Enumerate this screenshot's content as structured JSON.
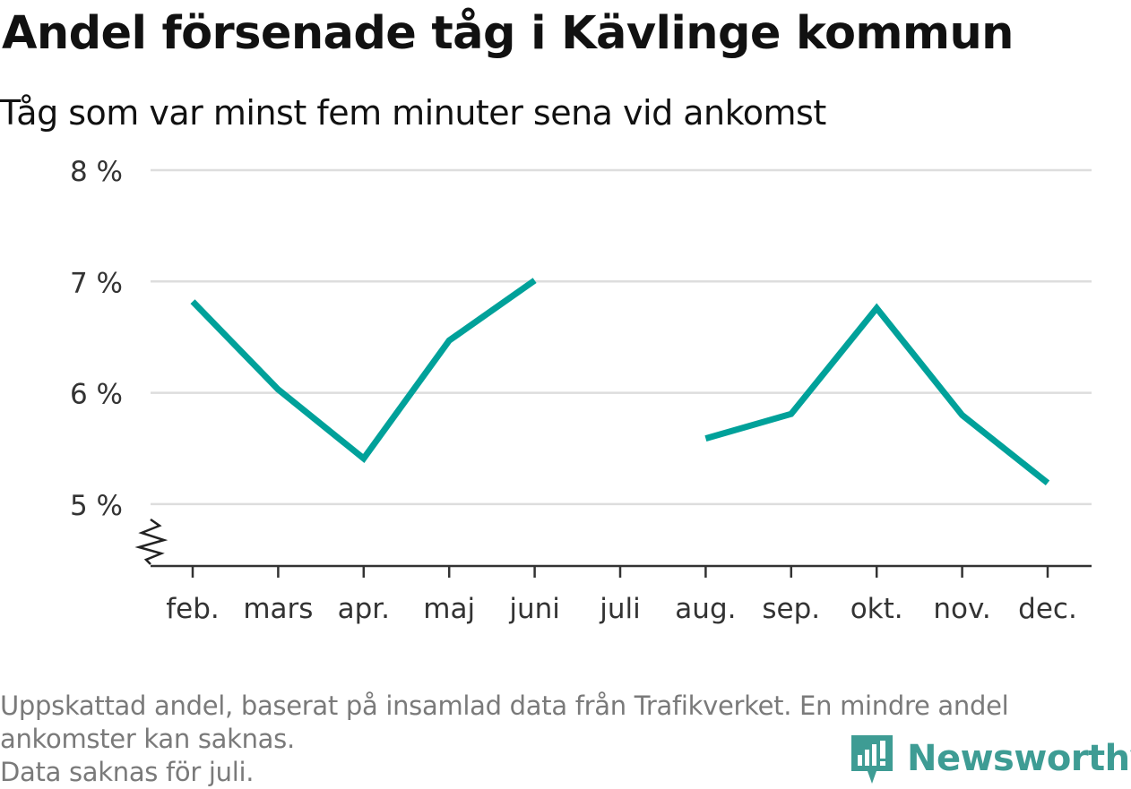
{
  "title": "Andel försenade tåg i Kävlinge kommun",
  "subtitle": "Tåg som var minst fem minuter sena vid ankomst",
  "chart_data": {
    "type": "line",
    "title": "Andel försenade tåg i Kävlinge kommun",
    "subtitle": "Tåg som var minst fem minuter sena vid ankomst",
    "categories": [
      "feb.",
      "mars",
      "apr.",
      "maj",
      "juni",
      "juli",
      "aug.",
      "sep.",
      "okt.",
      "nov.",
      "dec."
    ],
    "series": [
      {
        "values": [
          6.82,
          6.03,
          5.41,
          6.47,
          7.01,
          null,
          5.59,
          5.81,
          6.76,
          5.8,
          5.19
        ]
      }
    ],
    "ylim": [
      4.45,
      8.0
    ],
    "yticks": [
      5,
      6,
      7,
      8
    ],
    "ytick_labels": [
      "5 %",
      "6 %",
      "7 %",
      "8 %"
    ],
    "xlabel": "",
    "ylabel": "",
    "grid": true,
    "axis_break": true,
    "line_color": "#00a19a"
  },
  "footnote": {
    "line1": "Uppskattad andel, baserat på insamlad data från Trafikverket. En mindre andel",
    "line2": "ankomster kan saknas.",
    "line3": "Data saknas för juli."
  },
  "brand": {
    "name": "Newsworthy",
    "color": "#3e9c94",
    "icon": "newsworthy-logo-icon"
  }
}
